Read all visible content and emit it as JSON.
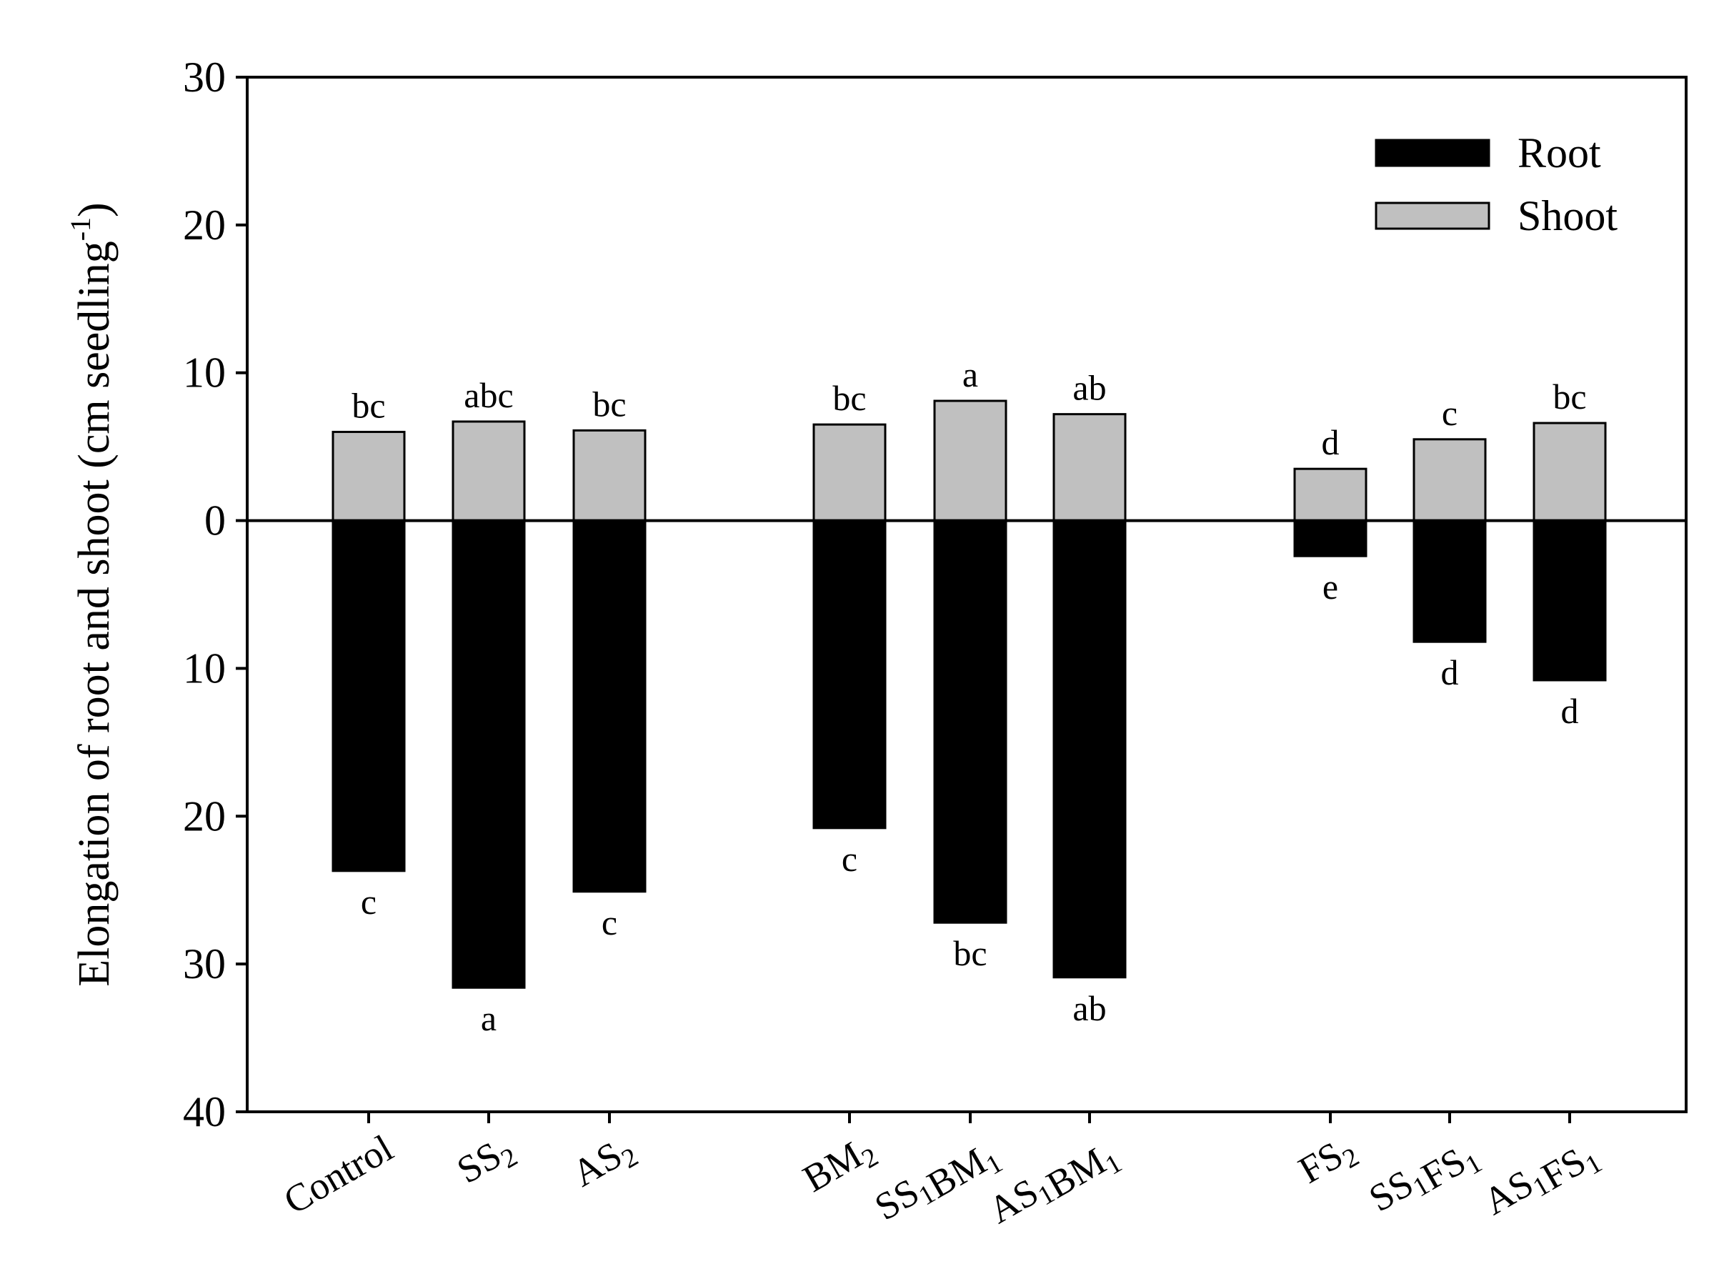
{
  "chart_data": {
    "type": "bar",
    "subtype": "diverging",
    "categories": [
      {
        "label": "Control",
        "parts": [
          {
            "t": "Control"
          }
        ]
      },
      {
        "label": "SS2",
        "parts": [
          {
            "t": "SS"
          },
          {
            "t": "2",
            "sub": true
          }
        ]
      },
      {
        "label": "AS2",
        "parts": [
          {
            "t": "AS"
          },
          {
            "t": "2",
            "sub": true
          }
        ]
      },
      {
        "label": "BM2",
        "parts": [
          {
            "t": "BM"
          },
          {
            "t": "2",
            "sub": true
          }
        ]
      },
      {
        "label": "SS1BM1",
        "parts": [
          {
            "t": "SS"
          },
          {
            "t": "1",
            "sub": true
          },
          {
            "t": "BM"
          },
          {
            "t": "1",
            "sub": true
          }
        ]
      },
      {
        "label": "AS1BM1",
        "parts": [
          {
            "t": "AS"
          },
          {
            "t": "1",
            "sub": true
          },
          {
            "t": "BM"
          },
          {
            "t": "1",
            "sub": true
          }
        ]
      },
      {
        "label": "FS2",
        "parts": [
          {
            "t": "FS"
          },
          {
            "t": "2",
            "sub": true
          }
        ]
      },
      {
        "label": "SS1FS1",
        "parts": [
          {
            "t": "SS"
          },
          {
            "t": "1",
            "sub": true
          },
          {
            "t": "FS"
          },
          {
            "t": "1",
            "sub": true
          }
        ]
      },
      {
        "label": "AS1FS1",
        "parts": [
          {
            "t": "AS"
          },
          {
            "t": "1",
            "sub": true
          },
          {
            "t": "FS"
          },
          {
            "t": "1",
            "sub": true
          }
        ]
      }
    ],
    "series": [
      {
        "name": "Root",
        "direction": "down",
        "color": "#000000",
        "values": [
          23.7,
          31.6,
          25.1,
          20.8,
          27.2,
          30.9,
          2.4,
          8.2,
          10.8
        ],
        "letters": [
          "c",
          "a",
          "c",
          "c",
          "bc",
          "ab",
          "e",
          "d",
          "d"
        ]
      },
      {
        "name": "Shoot",
        "direction": "up",
        "color": "#c0c0c0",
        "values": [
          6.0,
          6.7,
          6.1,
          6.5,
          8.1,
          7.2,
          3.5,
          5.5,
          6.6
        ],
        "letters": [
          "bc",
          "abc",
          "bc",
          "bc",
          "a",
          "ab",
          "d",
          "c",
          "bc"
        ]
      }
    ],
    "ylabel": {
      "main": "Elongation of root and shoot (cm seedling",
      "sup": "-1",
      "close": ")"
    },
    "yticks": [
      {
        "value": 30,
        "label": "30"
      },
      {
        "value": 20,
        "label": "20"
      },
      {
        "value": 10,
        "label": "10"
      },
      {
        "value": 0,
        "label": "0"
      },
      {
        "value": -10,
        "label": "10"
      },
      {
        "value": -20,
        "label": "20"
      },
      {
        "value": -30,
        "label": "30"
      },
      {
        "value": -40,
        "label": "40"
      }
    ],
    "ylim": [
      -40,
      30
    ],
    "legend": {
      "position": "top-right",
      "entries": [
        "Root",
        "Shoot"
      ]
    }
  }
}
